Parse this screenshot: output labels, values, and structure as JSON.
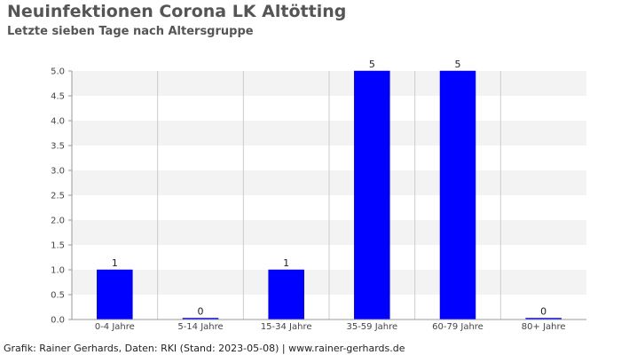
{
  "title": "Neuinfektionen Corona LK Altötting",
  "subtitle": "Letzte sieben Tage nach Altersgruppe",
  "footer": "Grafik: Rainer Gerhards, Daten: RKI (Stand: 2023-05-08) | www.rainer-gerhards.de",
  "chart_data": {
    "type": "bar",
    "categories": [
      "0-4 Jahre",
      "5-14 Jahre",
      "15-34 Jahre",
      "35-59 Jahre",
      "60-79 Jahre",
      "80+ Jahre"
    ],
    "values": [
      1,
      0,
      1,
      5,
      5,
      0
    ],
    "data_labels": [
      "1",
      "0",
      "1",
      "5",
      "5",
      "0"
    ],
    "ylim": [
      0,
      5
    ],
    "yticks": [
      0,
      0.5,
      1,
      1.5,
      2,
      2.5,
      3,
      3.5,
      4,
      4.5,
      5
    ],
    "ytick_labels": [
      "0.0",
      "0.5",
      "1.0",
      "1.5",
      "2.0",
      "2.5",
      "3.0",
      "3.5",
      "4.0",
      "4.5",
      "5.0"
    ],
    "bar_color": "#0000ff",
    "band_color": "#f3f3f3",
    "grid": true,
    "legend": false
  }
}
